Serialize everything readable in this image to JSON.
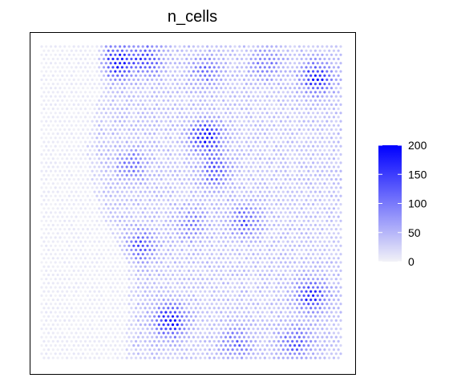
{
  "chart_data": {
    "type": "heatmap",
    "title": "n_cells",
    "xlabel": "",
    "ylabel": "",
    "grid": false,
    "legend": {
      "placement": "right",
      "ticks": [
        0,
        50,
        100,
        150,
        200
      ],
      "tick_labels": [
        "0",
        "50",
        "100",
        "150",
        "200"
      ],
      "range": [
        0,
        200
      ],
      "color_low": "#F2F2F7",
      "color_high": "#0000FF"
    },
    "spot_grid": {
      "cols": 66,
      "rows": 76,
      "layout": "hexagonal"
    },
    "clusters": [
      {
        "x": 0.25,
        "y": 0.05,
        "peak": 185
      },
      {
        "x": 0.35,
        "y": 0.04,
        "peak": 130
      },
      {
        "x": 0.55,
        "y": 0.08,
        "peak": 90
      },
      {
        "x": 0.92,
        "y": 0.1,
        "peak": 175
      },
      {
        "x": 0.75,
        "y": 0.06,
        "peak": 80
      },
      {
        "x": 0.55,
        "y": 0.29,
        "peak": 200
      },
      {
        "x": 0.58,
        "y": 0.4,
        "peak": 120
      },
      {
        "x": 0.3,
        "y": 0.38,
        "peak": 90
      },
      {
        "x": 0.68,
        "y": 0.56,
        "peak": 115
      },
      {
        "x": 0.33,
        "y": 0.64,
        "peak": 110
      },
      {
        "x": 0.5,
        "y": 0.57,
        "peak": 80
      },
      {
        "x": 0.9,
        "y": 0.8,
        "peak": 160
      },
      {
        "x": 0.43,
        "y": 0.88,
        "peak": 195
      },
      {
        "x": 0.65,
        "y": 0.95,
        "peak": 100
      },
      {
        "x": 0.85,
        "y": 0.95,
        "peak": 120
      }
    ]
  }
}
